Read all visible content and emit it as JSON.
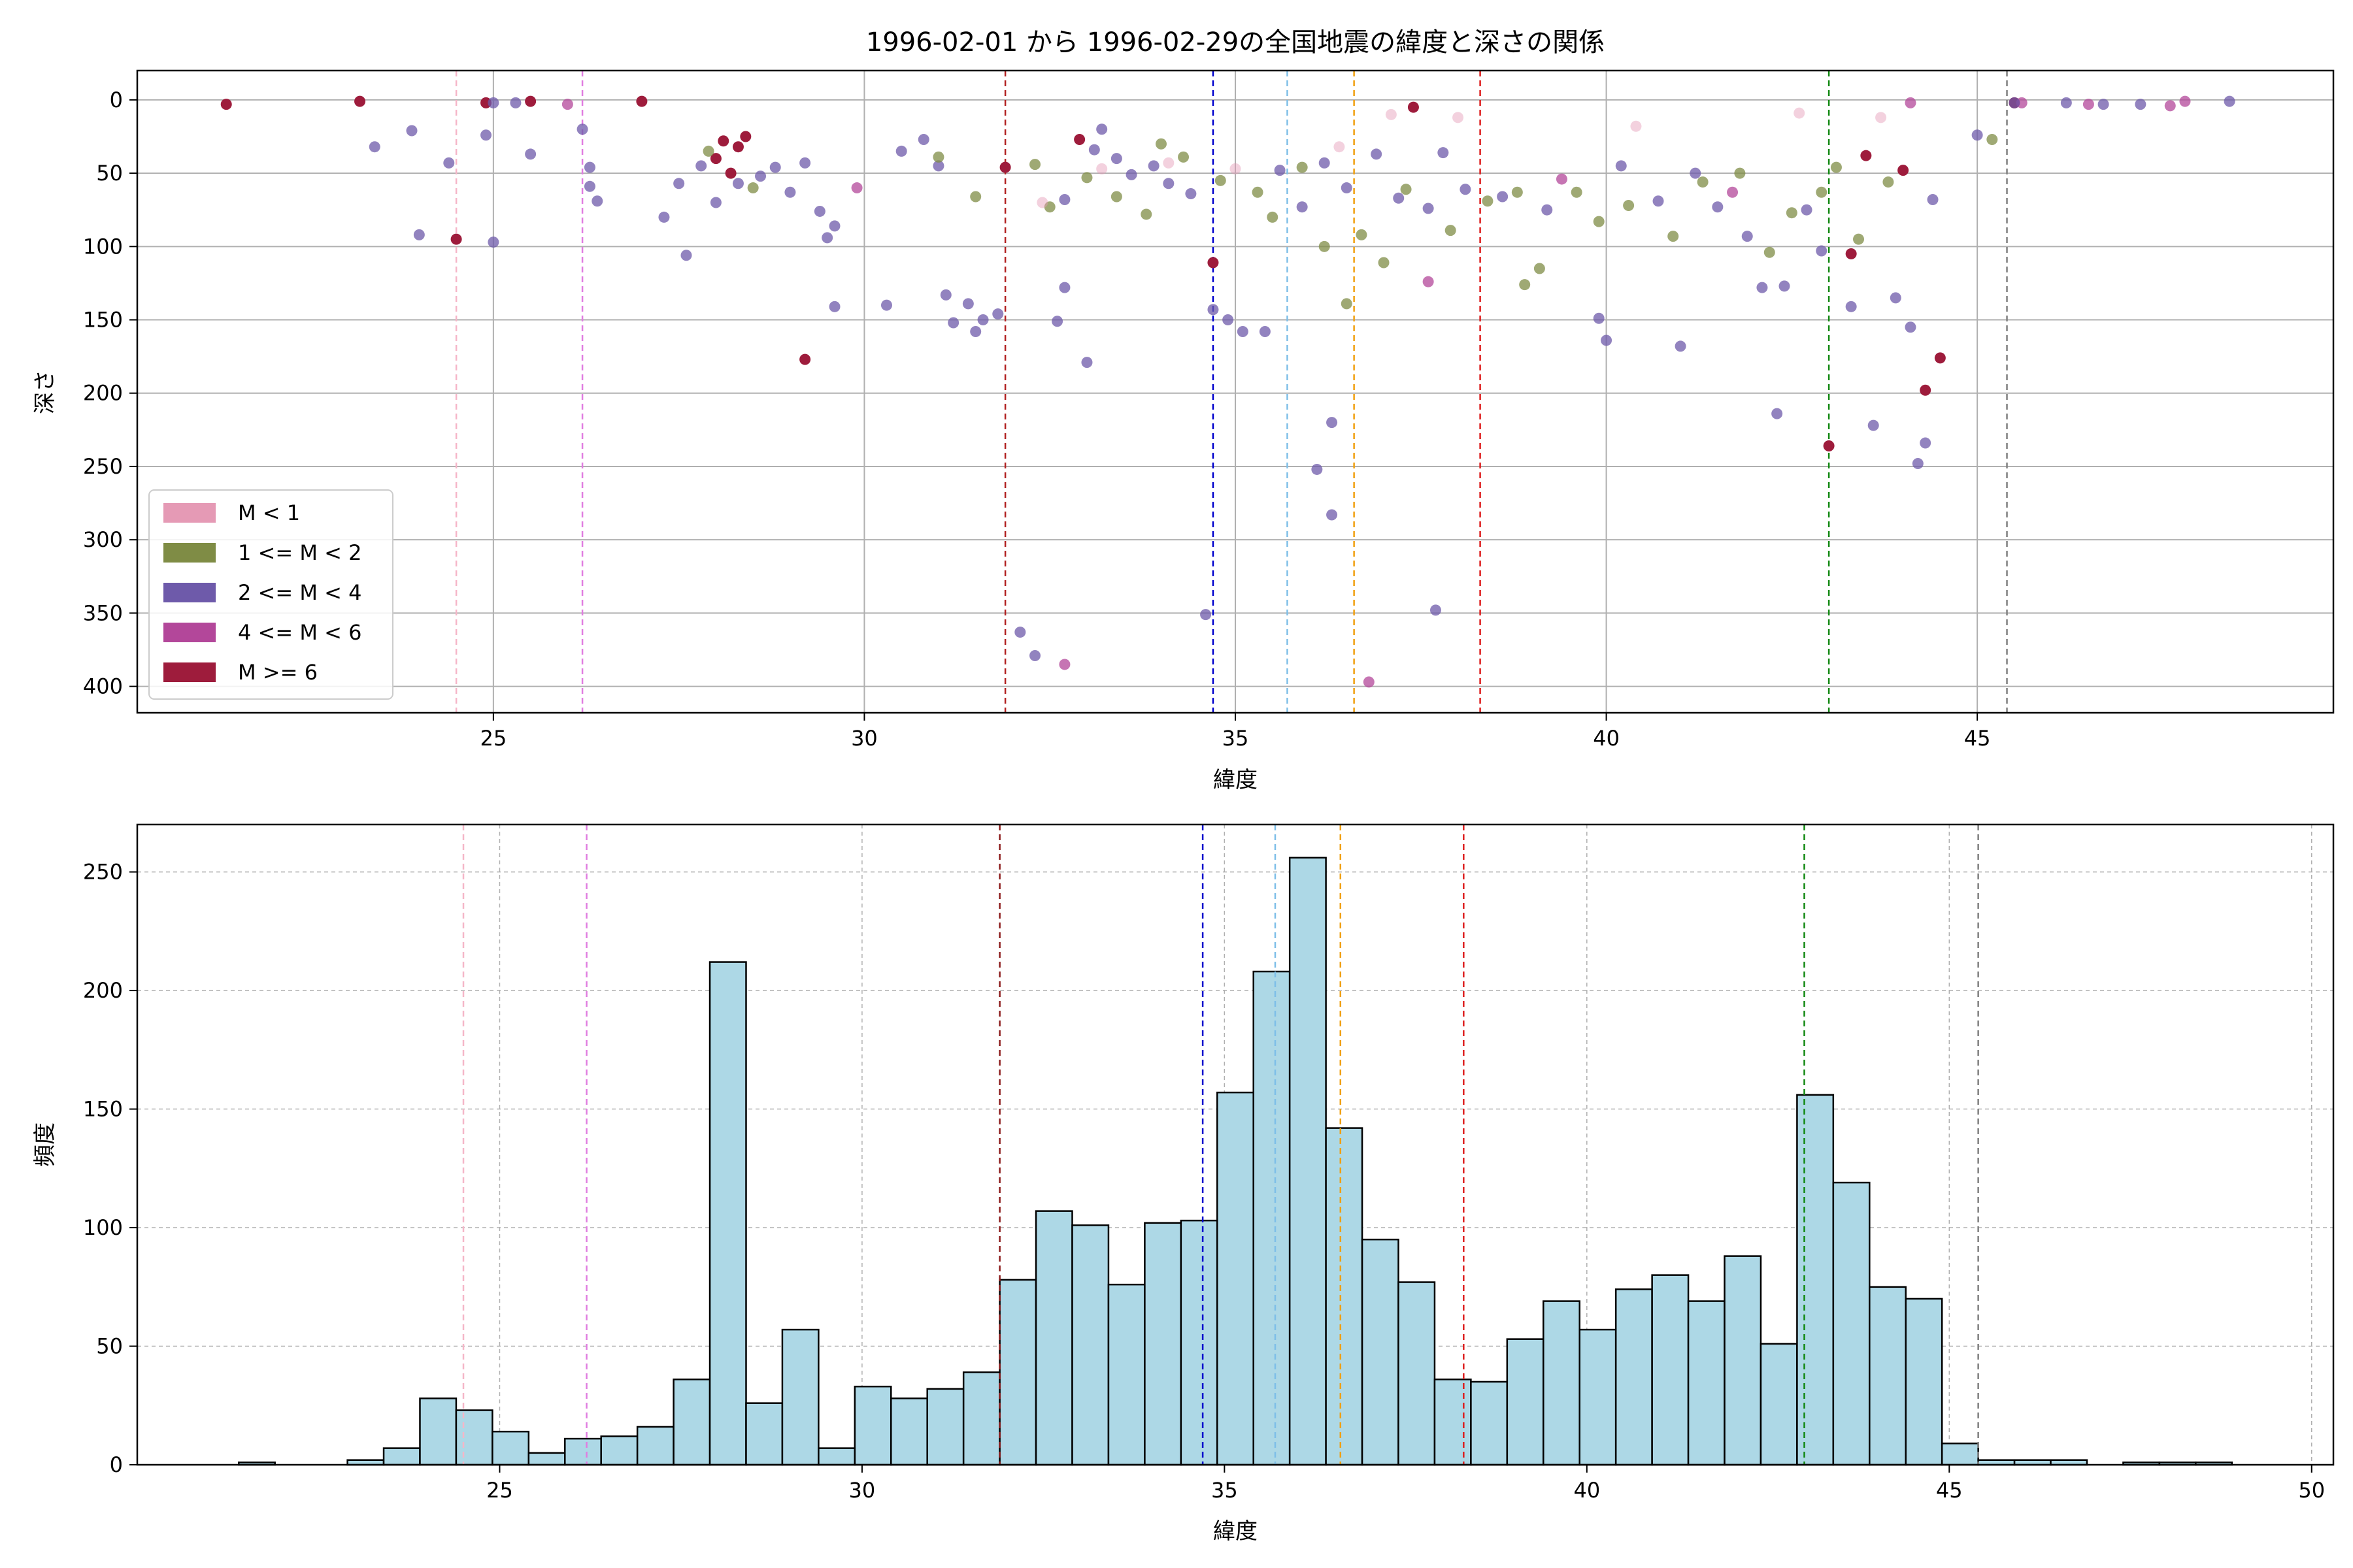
{
  "figure": {
    "title": "1996-02-01 から 1996-02-29の全国地震の緯度と深さの関係"
  },
  "chart_data": [
    {
      "type": "scatter",
      "xlabel": "緯度",
      "ylabel": "深さ",
      "xlim": [
        20.2,
        49.8
      ],
      "ylim": [
        400,
        0
      ],
      "y_inverted": true,
      "xticks": [
        25,
        30,
        35,
        40,
        45
      ],
      "yticks": [
        0,
        50,
        100,
        150,
        200,
        250,
        300,
        350,
        400
      ],
      "grid": true,
      "legend_position": "lower-left",
      "legend": [
        {
          "label": "M < 1",
          "color": "#e59ab5"
        },
        {
          "label": "1 <= M < 2",
          "color": "#7f8c45"
        },
        {
          "label": "2 <= M < 4",
          "color": "#6e5aaa"
        },
        {
          "label": "4 <= M < 6",
          "color": "#b3479a"
        },
        {
          "label": "M >= 6",
          "color": "#9e1c3c"
        }
      ],
      "vlines": [
        {
          "x": 24.5,
          "color": "#f5b6c8"
        },
        {
          "x": 26.2,
          "color": "#e07de0"
        },
        {
          "x": 31.9,
          "color": "#b22222"
        },
        {
          "x": 34.7,
          "color": "#0000cc"
        },
        {
          "x": 35.7,
          "color": "#7fbfe8"
        },
        {
          "x": 36.6,
          "color": "#f0a010"
        },
        {
          "x": 38.3,
          "color": "#dd1c1c"
        },
        {
          "x": 43.0,
          "color": "#118811"
        },
        {
          "x": 45.4,
          "color": "#808080"
        }
      ],
      "series": [
        {
          "name": "M >= 6",
          "points": [
            [
              21.4,
              3
            ],
            [
              23.2,
              1
            ],
            [
              24.5,
              95
            ],
            [
              24.9,
              2
            ],
            [
              25.5,
              1
            ],
            [
              27.0,
              1
            ],
            [
              28.1,
              28
            ],
            [
              28.3,
              32
            ],
            [
              28.0,
              40
            ],
            [
              28.4,
              25
            ],
            [
              28.2,
              50
            ],
            [
              29.2,
              177
            ],
            [
              31.9,
              46
            ],
            [
              32.9,
              27
            ],
            [
              34.7,
              111
            ],
            [
              37.4,
              5
            ],
            [
              43.0,
              236
            ],
            [
              43.3,
              105
            ],
            [
              43.5,
              38
            ],
            [
              44.0,
              48
            ],
            [
              44.3,
              198
            ],
            [
              44.5,
              176
            ],
            [
              45.5,
              2
            ]
          ]
        },
        {
          "name": "4 <= M < 6",
          "points": [
            [
              26.0,
              3
            ],
            [
              29.9,
              60
            ],
            [
              32.7,
              385
            ],
            [
              36.8,
              397
            ],
            [
              37.6,
              124
            ],
            [
              39.4,
              54
            ],
            [
              41.7,
              63
            ],
            [
              44.1,
              2
            ],
            [
              46.5,
              3
            ],
            [
              47.6,
              4
            ],
            [
              47.8,
              1
            ],
            [
              45.6,
              2
            ]
          ]
        },
        {
          "name": "2 <= M < 4",
          "points": [
            [
              23.4,
              32
            ],
            [
              23.9,
              21
            ],
            [
              24.0,
              92
            ],
            [
              24.4,
              43
            ],
            [
              24.9,
              24
            ],
            [
              25.0,
              97
            ],
            [
              25.0,
              2
            ],
            [
              25.3,
              2
            ],
            [
              25.5,
              37
            ],
            [
              26.2,
              20
            ],
            [
              26.3,
              46
            ],
            [
              26.3,
              59
            ],
            [
              26.4,
              69
            ],
            [
              27.3,
              80
            ],
            [
              27.6,
              106
            ],
            [
              27.5,
              57
            ],
            [
              27.8,
              45
            ],
            [
              28.0,
              70
            ],
            [
              28.3,
              57
            ],
            [
              28.6,
              52
            ],
            [
              28.8,
              46
            ],
            [
              29.2,
              43
            ],
            [
              29.4,
              76
            ],
            [
              29.5,
              94
            ],
            [
              29.6,
              86
            ],
            [
              29.0,
              63
            ],
            [
              29.6,
              141
            ],
            [
              30.3,
              140
            ],
            [
              30.5,
              35
            ],
            [
              30.8,
              27
            ],
            [
              31.0,
              45
            ],
            [
              31.1,
              133
            ],
            [
              31.2,
              152
            ],
            [
              31.4,
              139
            ],
            [
              31.5,
              158
            ],
            [
              31.6,
              150
            ],
            [
              31.8,
              146
            ],
            [
              32.1,
              363
            ],
            [
              32.3,
              379
            ],
            [
              32.6,
              151
            ],
            [
              32.7,
              128
            ],
            [
              32.7,
              68
            ],
            [
              33.0,
              179
            ],
            [
              33.1,
              34
            ],
            [
              33.2,
              20
            ],
            [
              33.4,
              40
            ],
            [
              33.6,
              51
            ],
            [
              33.9,
              45
            ],
            [
              34.1,
              57
            ],
            [
              34.4,
              64
            ],
            [
              34.6,
              351
            ],
            [
              34.7,
              143
            ],
            [
              34.9,
              150
            ],
            [
              35.1,
              158
            ],
            [
              35.4,
              158
            ],
            [
              35.6,
              48
            ],
            [
              35.9,
              73
            ],
            [
              36.1,
              252
            ],
            [
              36.2,
              43
            ],
            [
              36.3,
              283
            ],
            [
              36.3,
              220
            ],
            [
              36.5,
              60
            ],
            [
              36.9,
              37
            ],
            [
              37.2,
              67
            ],
            [
              37.6,
              74
            ],
            [
              37.7,
              348
            ],
            [
              37.8,
              36
            ],
            [
              38.1,
              61
            ],
            [
              38.6,
              66
            ],
            [
              39.2,
              75
            ],
            [
              39.9,
              149
            ],
            [
              40.2,
              45
            ],
            [
              40.0,
              164
            ],
            [
              41.0,
              168
            ],
            [
              40.7,
              69
            ],
            [
              41.2,
              50
            ],
            [
              41.5,
              73
            ],
            [
              41.9,
              93
            ],
            [
              42.1,
              128
            ],
            [
              42.3,
              214
            ],
            [
              42.4,
              127
            ],
            [
              42.7,
              75
            ],
            [
              42.9,
              103
            ],
            [
              43.3,
              141
            ],
            [
              43.6,
              222
            ],
            [
              43.9,
              135
            ],
            [
              44.2,
              248
            ],
            [
              44.3,
              234
            ],
            [
              44.1,
              155
            ],
            [
              44.4,
              68
            ],
            [
              45.0,
              24
            ],
            [
              45.5,
              2
            ],
            [
              46.2,
              2
            ],
            [
              46.7,
              3
            ],
            [
              47.2,
              3
            ],
            [
              48.4,
              1
            ]
          ]
        },
        {
          "name": "1 <= M < 2",
          "points": [
            [
              27.9,
              35
            ],
            [
              28.5,
              60
            ],
            [
              31.0,
              39
            ],
            [
              31.5,
              66
            ],
            [
              32.3,
              44
            ],
            [
              32.5,
              73
            ],
            [
              33.0,
              53
            ],
            [
              33.4,
              66
            ],
            [
              33.8,
              78
            ],
            [
              34.0,
              30
            ],
            [
              34.3,
              39
            ],
            [
              34.8,
              55
            ],
            [
              35.3,
              63
            ],
            [
              35.5,
              80
            ],
            [
              35.9,
              46
            ],
            [
              36.2,
              100
            ],
            [
              36.5,
              139
            ],
            [
              36.7,
              92
            ],
            [
              37.0,
              111
            ],
            [
              37.3,
              61
            ],
            [
              37.9,
              89
            ],
            [
              38.4,
              69
            ],
            [
              38.8,
              63
            ],
            [
              38.9,
              126
            ],
            [
              39.1,
              115
            ],
            [
              39.6,
              63
            ],
            [
              39.9,
              83
            ],
            [
              40.3,
              72
            ],
            [
              40.9,
              93
            ],
            [
              41.3,
              56
            ],
            [
              41.8,
              50
            ],
            [
              42.2,
              104
            ],
            [
              42.5,
              77
            ],
            [
              42.9,
              63
            ],
            [
              43.1,
              46
            ],
            [
              43.4,
              95
            ],
            [
              43.8,
              56
            ],
            [
              45.2,
              27
            ]
          ]
        },
        {
          "name": "M < 1",
          "points": [
            [
              32.4,
              70
            ],
            [
              33.2,
              47
            ],
            [
              34.1,
              43
            ],
            [
              35.0,
              47
            ],
            [
              36.4,
              32
            ],
            [
              37.1,
              10
            ],
            [
              38.0,
              12
            ],
            [
              40.4,
              18
            ],
            [
              42.6,
              9
            ],
            [
              43.7,
              12
            ]
          ]
        }
      ]
    },
    {
      "type": "histogram",
      "xlabel": "緯度",
      "ylabel": "頻度",
      "xlim": [
        20.0,
        50.3
      ],
      "ylim": [
        0,
        270
      ],
      "xticks": [
        25,
        30,
        35,
        40,
        45,
        50
      ],
      "yticks": [
        0,
        50,
        100,
        150,
        200,
        250
      ],
      "grid": true,
      "bar_color": "#add8e6",
      "bar_edge": "#000000",
      "bins": [
        [
          21.4,
          21.9,
          1
        ],
        [
          21.9,
          22.4,
          0
        ],
        [
          22.4,
          22.9,
          0
        ],
        [
          22.9,
          23.4,
          2
        ],
        [
          23.4,
          23.9,
          7
        ],
        [
          23.9,
          24.4,
          28
        ],
        [
          24.4,
          24.9,
          23
        ],
        [
          24.9,
          25.4,
          14
        ],
        [
          25.4,
          25.9,
          5
        ],
        [
          25.9,
          26.4,
          11
        ],
        [
          26.4,
          26.9,
          12
        ],
        [
          26.9,
          27.4,
          16
        ],
        [
          27.4,
          27.9,
          36
        ],
        [
          27.9,
          28.4,
          212
        ],
        [
          28.4,
          28.9,
          26
        ],
        [
          28.9,
          29.4,
          57
        ],
        [
          29.4,
          29.9,
          7
        ],
        [
          29.9,
          30.4,
          33
        ],
        [
          30.4,
          30.9,
          28
        ],
        [
          30.9,
          31.4,
          32
        ],
        [
          31.4,
          31.9,
          39
        ],
        [
          31.9,
          32.4,
          78
        ],
        [
          32.4,
          32.9,
          107
        ],
        [
          32.9,
          33.4,
          101
        ],
        [
          33.4,
          33.9,
          76
        ],
        [
          33.9,
          34.4,
          102
        ],
        [
          34.4,
          34.9,
          103
        ],
        [
          34.9,
          35.4,
          157
        ],
        [
          35.4,
          35.9,
          208
        ],
        [
          35.9,
          36.4,
          256
        ],
        [
          36.4,
          36.9,
          142
        ],
        [
          36.9,
          37.4,
          95
        ],
        [
          37.4,
          37.9,
          77
        ],
        [
          37.9,
          38.4,
          36
        ],
        [
          38.4,
          38.9,
          35
        ],
        [
          38.9,
          39.4,
          53
        ],
        [
          39.4,
          39.9,
          69
        ],
        [
          39.9,
          40.4,
          57
        ],
        [
          40.4,
          40.9,
          74
        ],
        [
          40.9,
          41.4,
          80
        ],
        [
          41.4,
          41.9,
          69
        ],
        [
          41.9,
          42.4,
          88
        ],
        [
          42.4,
          42.9,
          51
        ],
        [
          42.9,
          43.4,
          156
        ],
        [
          43.4,
          43.9,
          119
        ],
        [
          43.9,
          44.4,
          75
        ],
        [
          44.4,
          44.9,
          70
        ],
        [
          44.9,
          45.4,
          9
        ],
        [
          45.4,
          45.9,
          2
        ],
        [
          45.9,
          46.4,
          2
        ],
        [
          46.4,
          46.9,
          2
        ],
        [
          46.9,
          47.4,
          0
        ],
        [
          47.4,
          47.9,
          1
        ],
        [
          47.9,
          48.4,
          1
        ],
        [
          48.4,
          48.9,
          1
        ]
      ],
      "vlines": [
        {
          "x": 24.5,
          "color": "#f5b6c8"
        },
        {
          "x": 26.2,
          "color": "#e07de0"
        },
        {
          "x": 31.9,
          "color": "#8b1a1a"
        },
        {
          "x": 34.7,
          "color": "#0000cc"
        },
        {
          "x": 35.7,
          "color": "#7fbfe8"
        },
        {
          "x": 36.6,
          "color": "#f0a010"
        },
        {
          "x": 38.3,
          "color": "#dd1c1c"
        },
        {
          "x": 43.0,
          "color": "#118811"
        },
        {
          "x": 45.4,
          "color": "#808080"
        }
      ]
    }
  ]
}
